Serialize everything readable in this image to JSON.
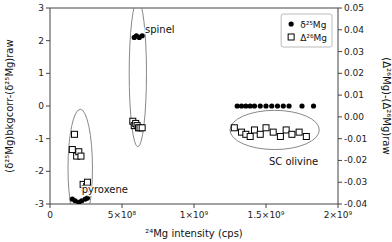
{
  "chart_data": {
    "type": "scatter",
    "x_label": "²⁴Mg intensity (cps)",
    "y_label": "(δ²⁵Mg)bkgcorr-(δ²⁵Mg)raw",
    "y2_label": "(Δ²⁶Mg)-(Δ²⁶Mg)raw",
    "xlim": [
      0,
      2000000000.0
    ],
    "ylim": [
      -3,
      3
    ],
    "y2lim": [
      -0.04,
      0.05
    ],
    "xticks": [
      0,
      {
        "value": 500000000.0,
        "label": "5×10⁸"
      },
      {
        "value": 1000000000.0,
        "label": "1×10⁹"
      },
      {
        "value": 1500000000.0,
        "label": "1.5×10⁹"
      },
      {
        "value": 2000000000.0,
        "label": "2×10⁹"
      }
    ],
    "yticks": [
      -3,
      -2,
      -1,
      0,
      1,
      2,
      3
    ],
    "y2ticks": [
      -0.04,
      -0.03,
      -0.02,
      -0.01,
      {
        "value": 0.0,
        "label": "0.00"
      },
      0.01,
      0.02,
      0.03,
      0.04,
      0.05
    ],
    "grid": false,
    "legend": "upper right",
    "series": [
      {
        "name": "δ²⁵Mg",
        "color": "black",
        "marker": "circle",
        "x": [
          155000000.0,
          175000000.0,
          200000000.0,
          220000000.0,
          245000000.0,
          260000000.0,
          585000000.0,
          600000000.0,
          620000000.0,
          640000000.0,
          1300000000.0,
          1330000000.0,
          1360000000.0,
          1390000000.0,
          1420000000.0,
          1460000000.0,
          1500000000.0,
          1540000000.0,
          1580000000.0,
          1620000000.0,
          1660000000.0,
          1750000000.0,
          1830000000.0
        ],
        "values": [
          -2.85,
          -2.9,
          -2.95,
          -2.9,
          -2.85,
          -2.82,
          2.1,
          2.15,
          2.1,
          2.15,
          0.0,
          0.0,
          0.0,
          0.0,
          0.0,
          0.0,
          0.0,
          0.0,
          0.0,
          0.0,
          0.0,
          0.0,
          0.0
        ]
      },
      {
        "name": "Δ²⁶Mg",
        "color": "black",
        "marker": "open-square",
        "axis": "y2",
        "x": [
          155000000.0,
          170000000.0,
          185000000.0,
          200000000.0,
          215000000.0,
          230000000.0,
          245000000.0,
          255000000.0,
          260000000.0,
          575000000.0,
          585000000.0,
          595000000.0,
          605000000.0,
          615000000.0,
          625000000.0,
          640000000.0,
          1280000000.0,
          1330000000.0,
          1360000000.0,
          1390000000.0,
          1420000000.0,
          1460000000.0,
          1500000000.0,
          1550000000.0,
          1600000000.0,
          1640000000.0,
          1680000000.0,
          1730000000.0,
          1780000000.0
        ],
        "values": [
          -0.015,
          -0.008,
          -0.018,
          -0.016,
          -0.018,
          -0.031,
          -0.033,
          -0.032,
          -0.03,
          -0.002,
          -0.004,
          -0.003,
          -0.004,
          -0.005,
          -0.005,
          -0.005,
          -0.005,
          -0.007,
          -0.008,
          -0.009,
          -0.006,
          -0.008,
          -0.005,
          -0.007,
          -0.009,
          -0.006,
          -0.008,
          -0.007,
          -0.009
        ]
      }
    ],
    "ellipses": [
      {
        "x": 210000000.0,
        "y": -1.9,
        "width": 170000000.0,
        "height": 3.6,
        "axis": "y",
        "color": "#888888"
      },
      {
        "x": 610000000.0,
        "y": 1.0,
        "width": 120000000.0,
        "height": 4.5,
        "axis": "y",
        "color": "#888888"
      },
      {
        "x": 1560000000.0,
        "y": -0.006,
        "width": 620000000.0,
        "height": 0.018,
        "axis": "y2",
        "color": "#888888"
      }
    ],
    "annotations": [
      {
        "text": "spinel",
        "x": 660000000.0,
        "y": 2.25,
        "axis": "y"
      },
      {
        "text": "pyroxene",
        "x": 220000000.0,
        "y": -2.65,
        "axis": "y"
      },
      {
        "text": "SC olivine",
        "x": 1520000000.0,
        "y": -0.022,
        "axis": "y2"
      }
    ]
  }
}
